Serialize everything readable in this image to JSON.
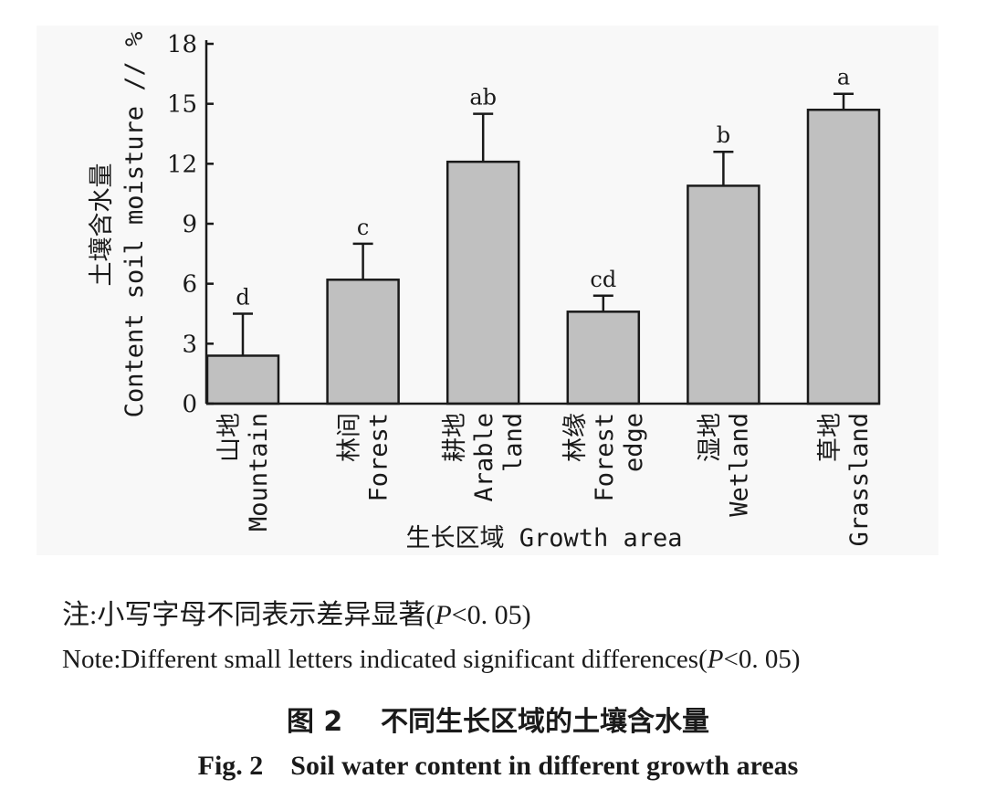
{
  "chart_data": {
    "type": "bar",
    "categories": [
      {
        "cn": "山地",
        "en": [
          "Mountain"
        ]
      },
      {
        "cn": "林间",
        "en": [
          "Forest"
        ]
      },
      {
        "cn": "耕地",
        "en": [
          "Arable",
          "land"
        ]
      },
      {
        "cn": "林缘",
        "en": [
          "Forest",
          "edge"
        ]
      },
      {
        "cn": "湿地",
        "en": [
          "Wetland"
        ]
      },
      {
        "cn": "草地",
        "en": [
          "Grassland"
        ]
      }
    ],
    "values": [
      2.4,
      6.2,
      12.1,
      4.6,
      10.9,
      14.7
    ],
    "error_upper": [
      4.5,
      8.0,
      14.5,
      5.4,
      12.6,
      15.5
    ],
    "significance_letters": [
      "d",
      "c",
      "ab",
      "cd",
      "b",
      "a"
    ],
    "ylim": [
      0,
      18
    ],
    "yticks": [
      "0",
      "3",
      "6",
      "9",
      "12",
      "15",
      "18"
    ],
    "ylabel_cn": "土壤含水量",
    "ylabel_en": "Content soil moisture // %",
    "xlabel": "生长区域 Growth area",
    "bar_color": "#c0c0c0"
  },
  "notes": {
    "cn_prefix": "注:小写字母不同表示差异显著(",
    "cn_p": "P",
    "cn_suffix": "<0. 05)",
    "en_prefix": "Note:Different small letters indicated significant differences(",
    "en_p": "P",
    "en_suffix": "<0. 05)"
  },
  "caption": {
    "cn": "图 2    不同生长区域的土壤含水量",
    "en": "Fig. 2    Soil water content in different growth areas"
  }
}
